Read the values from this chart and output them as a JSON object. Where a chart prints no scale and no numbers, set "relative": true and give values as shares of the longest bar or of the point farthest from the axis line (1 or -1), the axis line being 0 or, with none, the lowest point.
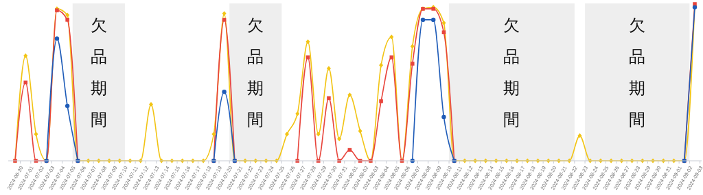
{
  "chart_data": {
    "type": "line",
    "relative": true,
    "line_style": "solid",
    "categories": [
      "2024-06-30",
      "2024-07-01",
      "2024-07-02",
      "2024-07-03",
      "2024-07-04",
      "2024-07-05",
      "2024-07-06",
      "2024-07-07",
      "2024-07-08",
      "2024-07-09",
      "2024-07-10",
      "2024-07-11",
      "2024-07-12",
      "2024-07-13",
      "2024-07-14",
      "2024-07-15",
      "2024-07-16",
      "2024-07-17",
      "2024-07-18",
      "2024-07-19",
      "2024-07-20",
      "2024-07-21",
      "2024-07-22",
      "2024-07-23",
      "2024-07-24",
      "2024-07-25",
      "2024-07-26",
      "2024-07-27",
      "2024-07-28",
      "2024-07-29",
      "2024-07-30",
      "2024-07-31",
      "2024-08-01",
      "2024-08-02",
      "2024-08-03",
      "2024-08-04",
      "2024-08-05",
      "2024-08-06",
      "2024-08-07",
      "2024-08-08",
      "2024-08-09",
      "2024-08-10",
      "2024-08-11",
      "2024-08-12",
      "2024-08-13",
      "2024-08-14",
      "2024-08-15",
      "2024-08-16",
      "2024-08-17",
      "2024-08-18",
      "2024-08-19",
      "2024-08-20",
      "2024-08-21",
      "2024-08-22",
      "2024-08-23",
      "2024-08-24",
      "2024-08-25",
      "2024-08-26",
      "2024-08-27",
      "2024-08-28",
      "2024-08-29",
      "2024-08-30",
      "2024-08-31",
      "2024-09-01",
      "2024-09-02",
      "2024-09-03"
    ],
    "series": [
      {
        "color": "#f2c414",
        "marker": "diamond",
        "values": [
          0,
          0.67,
          0.17,
          0,
          0.97,
          0.93,
          0,
          0,
          0,
          0,
          0,
          0,
          0,
          0.36,
          0,
          0,
          0,
          0,
          0,
          0.17,
          0.94,
          0,
          0,
          0,
          0,
          0,
          0.17,
          0.3,
          0.76,
          0.17,
          0.59,
          0.14,
          0.42,
          0.19,
          0,
          0.61,
          0.79,
          0,
          0.73,
          0.97,
          0.98,
          0.88,
          0,
          0,
          0,
          0,
          0,
          0,
          0,
          0,
          0,
          0,
          0,
          0,
          0.16,
          0,
          0,
          0,
          0,
          0,
          0,
          0,
          0,
          0,
          0,
          0.99
        ]
      },
      {
        "color": "#e8453c",
        "marker": "square",
        "values": [
          0,
          0.5,
          0,
          0,
          0.96,
          0.9,
          0,
          null,
          null,
          null,
          null,
          null,
          null,
          null,
          null,
          null,
          null,
          null,
          null,
          0,
          0.9,
          0,
          null,
          null,
          null,
          null,
          null,
          0,
          0.66,
          0,
          0.4,
          0,
          0.07,
          0,
          0,
          0.38,
          0.66,
          0,
          0.62,
          0.97,
          0.97,
          0.82,
          0,
          null,
          null,
          null,
          null,
          null,
          null,
          null,
          null,
          null,
          null,
          null,
          null,
          null,
          null,
          null,
          null,
          null,
          null,
          null,
          null,
          null,
          0,
          1
        ]
      },
      {
        "color": "#1f5cb8",
        "marker": "circle",
        "values": [
          null,
          null,
          null,
          0,
          0.78,
          0.35,
          0,
          null,
          null,
          null,
          null,
          null,
          null,
          null,
          null,
          null,
          null,
          null,
          null,
          0,
          0.44,
          0,
          null,
          null,
          null,
          null,
          null,
          null,
          null,
          null,
          null,
          null,
          null,
          null,
          null,
          null,
          null,
          null,
          0,
          0.9,
          0.9,
          0.28,
          0,
          null,
          null,
          null,
          null,
          null,
          null,
          null,
          null,
          null,
          null,
          null,
          null,
          null,
          null,
          null,
          null,
          null,
          null,
          null,
          null,
          null,
          0,
          0.98
        ]
      }
    ],
    "bands": [
      {
        "axis": "x",
        "from": "2024-07-06",
        "to": "2024-07-10",
        "label": "欠品期間",
        "color": "#eeeeee"
      },
      {
        "axis": "x",
        "from": "2024-07-21",
        "to": "2024-07-25",
        "label": "欠品期間",
        "color": "#eeeeee"
      },
      {
        "axis": "x",
        "from": "2024-08-11",
        "to": "2024-08-22",
        "label": "欠品期間",
        "color": "#eeeeee"
      },
      {
        "axis": "x",
        "from": "2024-08-24",
        "to": "2024-09-02",
        "label": "欠品期間",
        "color": "#eeeeee"
      }
    ]
  }
}
